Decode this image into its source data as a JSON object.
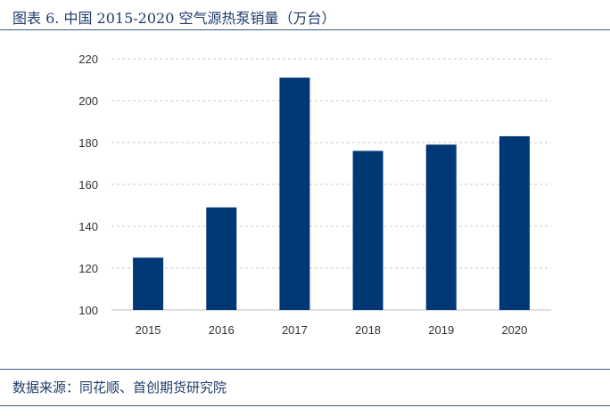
{
  "title": "图表 6. 中国 2015-2020 空气源热泵销量（万台）",
  "source": "数据来源：同花顺、首创期货研究院",
  "colors": {
    "bar": "#003876",
    "grid": "#c8c8c8",
    "axis": "#bfbfbf"
  },
  "chart_data": {
    "type": "bar",
    "categories": [
      "2015",
      "2016",
      "2017",
      "2018",
      "2019",
      "2020"
    ],
    "values": [
      125,
      149,
      211,
      176,
      179,
      183
    ],
    "title": "",
    "xlabel": "",
    "ylabel": "",
    "ylim": [
      100,
      220
    ],
    "yticks": [
      100,
      120,
      140,
      160,
      180,
      200,
      220
    ],
    "grid": true,
    "grid_style": "dashed"
  }
}
